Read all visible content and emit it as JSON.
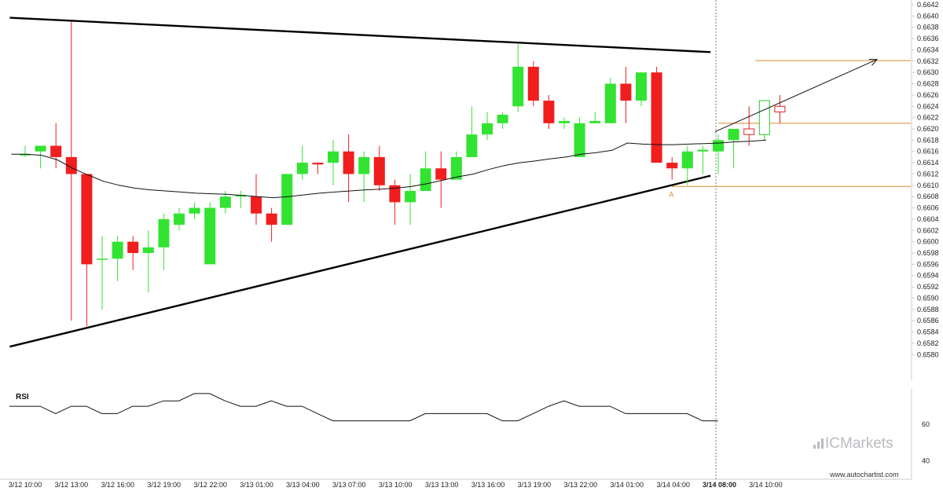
{
  "chart_data": {
    "type": "candlestick",
    "price_axis": {
      "min": 0.6576,
      "max": 0.6642,
      "ticks": [
        "0.6642",
        "0.6640",
        "0.6638",
        "0.6636",
        "0.6634",
        "0.6632",
        "0.6630",
        "0.6628",
        "0.6626",
        "0.6624",
        "0.6622",
        "0.6620",
        "0.6618",
        "0.6616",
        "0.6614",
        "0.6612",
        "0.6610",
        "0.6608",
        "0.6606",
        "0.6604",
        "0.6602",
        "0.6600",
        "0.6598",
        "0.6596",
        "0.6594",
        "0.6592",
        "0.6590",
        "0.6588",
        "0.6586",
        "0.6584",
        "0.6582",
        "0.6580"
      ]
    },
    "time_labels": [
      "3/12 10:00",
      "3/12 13:00",
      "3/12 16:00",
      "3/12 19:00",
      "3/12 22:00",
      "3/13 01:00",
      "3/13 04:00",
      "3/13 07:00",
      "3/13 10:00",
      "3/13 13:00",
      "3/13 16:00",
      "3/13 19:00",
      "3/13 22:00",
      "3/14 01:00",
      "3/14 04:00",
      "3/14 08:00",
      "3/14 10:00"
    ],
    "highlighted_time": "3/14 08:00",
    "candles": [
      {
        "o": 0.66155,
        "h": 0.6617,
        "l": 0.6615,
        "c": 0.66155
      },
      {
        "o": 0.6616,
        "h": 0.6617,
        "l": 0.6613,
        "c": 0.6617
      },
      {
        "o": 0.6617,
        "h": 0.6621,
        "l": 0.6613,
        "c": 0.6615
      },
      {
        "o": 0.6615,
        "h": 0.6639,
        "l": 0.6586,
        "c": 0.6612
      },
      {
        "o": 0.6612,
        "h": 0.6612,
        "l": 0.6585,
        "c": 0.6596
      },
      {
        "o": 0.6597,
        "h": 0.6601,
        "l": 0.6588,
        "c": 0.6597
      },
      {
        "o": 0.6597,
        "h": 0.6601,
        "l": 0.6593,
        "c": 0.66
      },
      {
        "o": 0.66,
        "h": 0.6601,
        "l": 0.6595,
        "c": 0.6598
      },
      {
        "o": 0.6598,
        "h": 0.6602,
        "l": 0.6591,
        "c": 0.6599
      },
      {
        "o": 0.6599,
        "h": 0.6605,
        "l": 0.6595,
        "c": 0.6604
      },
      {
        "o": 0.6603,
        "h": 0.6606,
        "l": 0.6602,
        "c": 0.6605
      },
      {
        "o": 0.6605,
        "h": 0.6607,
        "l": 0.6604,
        "c": 0.6606
      },
      {
        "o": 0.6596,
        "h": 0.6607,
        "l": 0.6596,
        "c": 0.6606
      },
      {
        "o": 0.6606,
        "h": 0.6609,
        "l": 0.6605,
        "c": 0.6608
      },
      {
        "o": 0.6608,
        "h": 0.6609,
        "l": 0.6606,
        "c": 0.66083
      },
      {
        "o": 0.6608,
        "h": 0.6612,
        "l": 0.6603,
        "c": 0.6605
      },
      {
        "o": 0.6605,
        "h": 0.6606,
        "l": 0.66,
        "c": 0.6603
      },
      {
        "o": 0.6603,
        "h": 0.6612,
        "l": 0.6603,
        "c": 0.6612
      },
      {
        "o": 0.6612,
        "h": 0.6617,
        "l": 0.6611,
        "c": 0.6614
      },
      {
        "o": 0.6614,
        "h": 0.6614,
        "l": 0.6612,
        "c": 0.66137
      },
      {
        "o": 0.6614,
        "h": 0.6618,
        "l": 0.661,
        "c": 0.6616
      },
      {
        "o": 0.6616,
        "h": 0.6619,
        "l": 0.6607,
        "c": 0.6612
      },
      {
        "o": 0.6612,
        "h": 0.6616,
        "l": 0.6607,
        "c": 0.6615
      },
      {
        "o": 0.6615,
        "h": 0.6617,
        "l": 0.6609,
        "c": 0.661
      },
      {
        "o": 0.661,
        "h": 0.6611,
        "l": 0.6603,
        "c": 0.6607
      },
      {
        "o": 0.6607,
        "h": 0.6612,
        "l": 0.6603,
        "c": 0.6609
      },
      {
        "o": 0.6609,
        "h": 0.6616,
        "l": 0.6609,
        "c": 0.6613
      },
      {
        "o": 0.6613,
        "h": 0.6616,
        "l": 0.6606,
        "c": 0.6611
      },
      {
        "o": 0.6611,
        "h": 0.6616,
        "l": 0.6611,
        "c": 0.6615
      },
      {
        "o": 0.6615,
        "h": 0.6624,
        "l": 0.6615,
        "c": 0.6619
      },
      {
        "o": 0.6619,
        "h": 0.6623,
        "l": 0.6618,
        "c": 0.6621
      },
      {
        "o": 0.6621,
        "h": 0.6623,
        "l": 0.662,
        "c": 0.66225
      },
      {
        "o": 0.6624,
        "h": 0.6635,
        "l": 0.6623,
        "c": 0.6631
      },
      {
        "o": 0.6631,
        "h": 0.6632,
        "l": 0.6624,
        "c": 0.6625
      },
      {
        "o": 0.6625,
        "h": 0.6626,
        "l": 0.662,
        "c": 0.6621
      },
      {
        "o": 0.6621,
        "h": 0.6622,
        "l": 0.662,
        "c": 0.66214
      },
      {
        "o": 0.6615,
        "h": 0.6622,
        "l": 0.6615,
        "c": 0.6621
      },
      {
        "o": 0.6621,
        "h": 0.6623,
        "l": 0.6621,
        "c": 0.66214
      },
      {
        "o": 0.6621,
        "h": 0.6629,
        "l": 0.6621,
        "c": 0.6628
      },
      {
        "o": 0.6628,
        "h": 0.6631,
        "l": 0.6621,
        "c": 0.6625
      },
      {
        "o": 0.6625,
        "h": 0.663,
        "l": 0.6624,
        "c": 0.663
      },
      {
        "o": 0.663,
        "h": 0.6631,
        "l": 0.6614,
        "c": 0.6614
      },
      {
        "o": 0.6614,
        "h": 0.6615,
        "l": 0.6611,
        "c": 0.6613
      },
      {
        "o": 0.6613,
        "h": 0.6617,
        "l": 0.661,
        "c": 0.6616
      },
      {
        "o": 0.6616,
        "h": 0.6617,
        "l": 0.6612,
        "c": 0.66163
      },
      {
        "o": 0.6616,
        "h": 0.6619,
        "l": 0.6612,
        "c": 0.6618
      },
      {
        "o": 0.6618,
        "h": 0.662,
        "l": 0.6613,
        "c": 0.662
      },
      {
        "o": 0.662,
        "h": 0.6624,
        "l": 0.6617,
        "c": 0.6619,
        "hollow": true
      },
      {
        "o": 0.6619,
        "h": 0.6625,
        "l": 0.6618,
        "c": 0.6625,
        "hollow": true
      },
      {
        "o": 0.6624,
        "h": 0.6626,
        "l": 0.6621,
        "c": 0.6623,
        "hollow": true
      }
    ],
    "moving_average": [
      0.66155,
      0.66155,
      0.66153,
      0.66145,
      0.6613,
      0.66118,
      0.66107,
      0.661,
      0.66095,
      0.66092,
      0.6609,
      0.66088,
      0.66086,
      0.66085,
      0.66084,
      0.66082,
      0.6608,
      0.66078,
      0.6608,
      0.66083,
      0.66086,
      0.66088,
      0.6609,
      0.66092,
      0.66093,
      0.66095,
      0.66098,
      0.66103,
      0.66109,
      0.66115,
      0.6612,
      0.66128,
      0.66135,
      0.6614,
      0.66143,
      0.66147,
      0.6615,
      0.66155,
      0.66158,
      0.66162,
      0.66175,
      0.66173,
      0.66172,
      0.66172,
      0.66173,
      0.66174,
      0.66175,
      0.66177,
      0.66178,
      0.6618
    ],
    "triangle_upper": {
      "from": {
        "i": -1,
        "price": 0.66397
      },
      "to": {
        "i": 44.5,
        "price": 0.66336
      }
    },
    "triangle_lower": {
      "from": {
        "i": -1,
        "price": 0.65814
      },
      "to": {
        "i": 44.5,
        "price": 0.66117
      }
    },
    "forecast_arrow": {
      "from": {
        "i": 44.8,
        "price": 0.66195
      },
      "to": {
        "i": 55.3,
        "price": 0.66323
      }
    },
    "levels": [
      {
        "price": 0.66321,
        "from_i": 47.4,
        "to_i": 57.5
      },
      {
        "price": 0.6621,
        "from_i": 45.0,
        "to_i": 57.5
      },
      {
        "price": 0.66098,
        "from_i": 42.0,
        "to_i": 57.5
      }
    ],
    "point_label": {
      "text": "A",
      "i": 42.0,
      "price": 0.66092
    },
    "rsi": {
      "title": "RSI",
      "ticks": [
        "60",
        "40"
      ],
      "min": 35,
      "max": 80,
      "values": [
        70,
        70,
        70,
        66,
        70,
        70,
        66,
        66,
        70,
        70,
        73,
        73,
        77,
        77,
        73,
        70,
        70,
        73,
        70,
        70,
        66,
        62,
        62,
        62,
        62,
        62,
        62,
        66,
        66,
        66,
        66,
        66,
        62,
        62,
        66,
        70,
        73,
        70,
        70,
        70,
        66,
        66,
        66,
        66,
        66,
        62,
        62
      ]
    },
    "colors": {
      "up": "#32e332",
      "down": "#f01e1e",
      "hollow_up": "#2ac92a",
      "hollow_down": "#e02020",
      "levels": "#e0892e",
      "ma": "#111111",
      "axis": "#cccccc"
    }
  },
  "brand": {
    "name": "ICMarkets",
    "prefix_icon": "bars-icon"
  },
  "footer": {
    "site": "www.autochartist.com"
  }
}
